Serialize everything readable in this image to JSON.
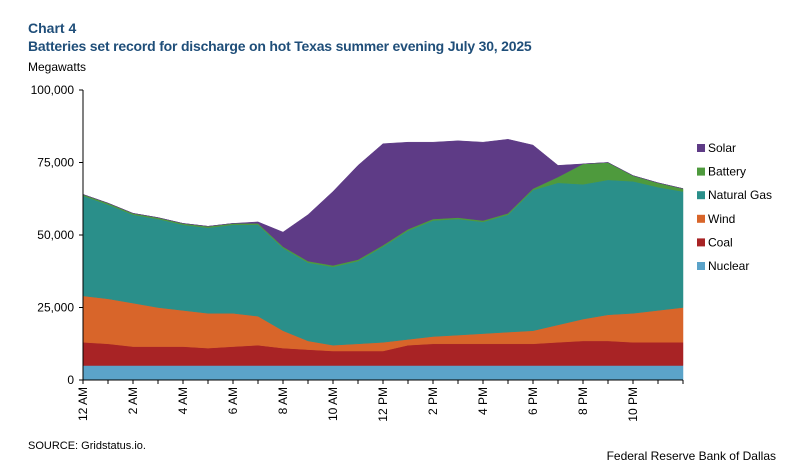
{
  "header": {
    "chart_label": "Chart 4",
    "title": "Batteries set record for discharge on hot Texas summer evening July 30, 2025",
    "unit_label": "Megawatts"
  },
  "footer": {
    "source": "SOURCE: Gridstatus.io.",
    "credit": "Federal Reserve Bank of Dallas"
  },
  "colors": {
    "Nuclear": "#5ba3c9",
    "Coal": "#a82325",
    "Wind": "#d8652a",
    "Natural Gas": "#2a8f8a",
    "Battery": "#4e9a3d",
    "Solar": "#5e3b86"
  },
  "chart_data": {
    "type": "area",
    "stacked": true,
    "title": "Batteries set record for discharge on hot Texas summer evening July 30, 2025",
    "xlabel": "",
    "ylabel": "Megawatts",
    "ylim": [
      0,
      100000
    ],
    "yticks": [
      0,
      25000,
      50000,
      75000,
      100000
    ],
    "ytick_labels": [
      "0",
      "25,000",
      "50,000",
      "75,000",
      "100,000"
    ],
    "xlim": [
      0,
      24
    ],
    "xticks": [
      0,
      2,
      4,
      6,
      8,
      10,
      12,
      14,
      16,
      18,
      20,
      22
    ],
    "xtick_labels": [
      "12 AM",
      "2 AM",
      "4 AM",
      "6 AM",
      "8 AM",
      "10 AM",
      "12 PM",
      "2 PM",
      "4 PM",
      "6 PM",
      "8 PM",
      "10 PM"
    ],
    "legend_position": "right",
    "x": [
      0,
      1,
      2,
      3,
      4,
      5,
      6,
      7,
      8,
      9,
      10,
      11,
      12,
      13,
      14,
      15,
      16,
      17,
      18,
      19,
      20,
      21,
      22,
      23,
      24
    ],
    "series": [
      {
        "name": "Nuclear",
        "values": [
          5000,
          5000,
          5000,
          5000,
          5000,
          5000,
          5000,
          5000,
          5000,
          5000,
          5000,
          5000,
          5000,
          5000,
          5000,
          5000,
          5000,
          5000,
          5000,
          5000,
          5000,
          5000,
          5000,
          5000,
          5000
        ]
      },
      {
        "name": "Coal",
        "values": [
          8000,
          7500,
          6500,
          6500,
          6500,
          6000,
          6500,
          7000,
          6000,
          5500,
          5000,
          5000,
          5000,
          7000,
          7500,
          7500,
          7500,
          7500,
          7500,
          8000,
          8500,
          8500,
          8000,
          8000,
          8000
        ]
      },
      {
        "name": "Wind",
        "values": [
          16000,
          15500,
          15000,
          13500,
          12500,
          12000,
          11500,
          10000,
          6000,
          3000,
          2000,
          2500,
          3000,
          2000,
          2500,
          3000,
          3500,
          4000,
          4500,
          6000,
          7500,
          9000,
          10000,
          11000,
          12000
        ]
      },
      {
        "name": "Natural Gas",
        "values": [
          34500,
          32500,
          30500,
          30500,
          29500,
          29500,
          30500,
          31500,
          28500,
          27000,
          27000,
          28500,
          33000,
          37500,
          40000,
          40000,
          38500,
          40500,
          48500,
          49000,
          46500,
          46500,
          45500,
          42500,
          40000
        ]
      },
      {
        "name": "Battery",
        "values": [
          500,
          500,
          500,
          500,
          500,
          500,
          500,
          500,
          500,
          500,
          500,
          500,
          500,
          500,
          500,
          500,
          500,
          500,
          500,
          2000,
          7000,
          6000,
          2000,
          1500,
          1000
        ]
      },
      {
        "name": "Solar",
        "values": [
          0,
          0,
          0,
          0,
          0,
          0,
          0,
          500,
          5000,
          16000,
          25500,
          32500,
          35000,
          30000,
          26500,
          26500,
          27000,
          25500,
          15000,
          4000,
          0,
          0,
          0,
          0,
          0
        ]
      }
    ]
  }
}
